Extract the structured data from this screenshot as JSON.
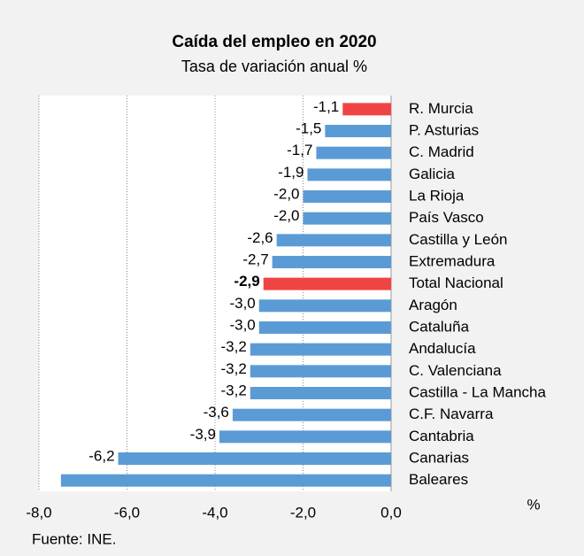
{
  "chart_data": {
    "type": "bar",
    "orientation": "horizontal",
    "title": "Caída del empleo en  2020",
    "subtitle": "Tasa de variación anual %",
    "x_unit": "%",
    "source": "Fuente: INE.",
    "categories": [
      "R. Murcia",
      "P. Asturias",
      "C. Madrid",
      "Galicia",
      "La Rioja",
      "País Vasco",
      "Castilla y León",
      "Extremadura",
      "Total Nacional",
      "Aragón",
      "Cataluña",
      "Andalucía",
      "C. Valenciana",
      "Castilla - La Mancha",
      "C.F. Navarra",
      "Cantabria",
      "Canarias",
      "Baleares"
    ],
    "values": [
      -1.1,
      -1.5,
      -1.7,
      -1.9,
      -2.0,
      -2.0,
      -2.6,
      -2.7,
      -2.9,
      -3.0,
      -3.0,
      -3.2,
      -3.2,
      -3.2,
      -3.6,
      -3.9,
      -6.2,
      -7.5
    ],
    "value_labels": [
      "-1,1",
      "-1,5",
      "-1,7",
      "-1,9",
      "-2,0",
      "-2,0",
      "-2,6",
      "-2,7",
      "-2,9",
      "-3,0",
      "-3,0",
      "-3,2",
      "-3,2",
      "-3,2",
      "-3,6",
      "-3,9",
      "-6,2",
      null
    ],
    "colors": [
      "#f04444",
      "#5b9bd5",
      "#5b9bd5",
      "#5b9bd5",
      "#5b9bd5",
      "#5b9bd5",
      "#5b9bd5",
      "#5b9bd5",
      "#f04444",
      "#5b9bd5",
      "#5b9bd5",
      "#5b9bd5",
      "#5b9bd5",
      "#5b9bd5",
      "#5b9bd5",
      "#5b9bd5",
      "#5b9bd5",
      "#5b9bd5"
    ],
    "bold": [
      false,
      false,
      false,
      false,
      false,
      false,
      false,
      false,
      true,
      false,
      false,
      false,
      false,
      false,
      false,
      false,
      false,
      false
    ],
    "xlim": [
      -8,
      0
    ],
    "xticks": [
      {
        "value": -8,
        "label": "-8,0"
      },
      {
        "value": -6,
        "label": "-6,0"
      },
      {
        "value": -4,
        "label": "-4,0"
      },
      {
        "value": -2,
        "label": "-2,0"
      },
      {
        "value": 0,
        "label": "0,0"
      }
    ],
    "grid": true
  }
}
